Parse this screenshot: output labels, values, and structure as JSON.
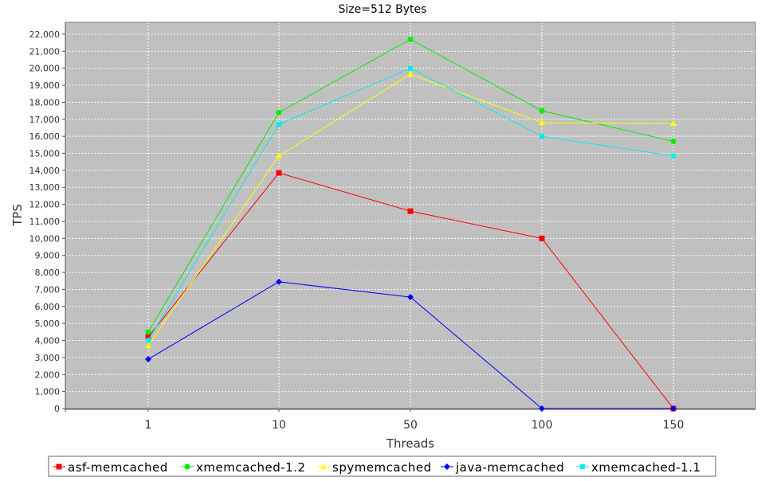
{
  "chart_data": {
    "type": "line",
    "title": "Size=512 Bytes",
    "xlabel": "Threads",
    "ylabel": "TPS",
    "categories": [
      "1",
      "10",
      "50",
      "100",
      "150"
    ],
    "ylim": [
      0,
      22700
    ],
    "yticks": [
      0,
      1000,
      2000,
      3000,
      4000,
      5000,
      6000,
      7000,
      8000,
      9000,
      10000,
      11000,
      12000,
      13000,
      14000,
      15000,
      16000,
      17000,
      18000,
      19000,
      20000,
      21000,
      22000
    ],
    "ytick_labels": [
      "0",
      "1,000",
      "2,000",
      "3,000",
      "4,000",
      "5,000",
      "6,000",
      "7,000",
      "8,000",
      "9,000",
      "10,000",
      "11,000",
      "12,000",
      "13,000",
      "14,000",
      "15,000",
      "16,000",
      "17,000",
      "18,000",
      "19,000",
      "20,000",
      "21,000",
      "22,000"
    ],
    "grid": true,
    "legend_position": "bottom",
    "plot_background": "#c0c0c0",
    "series": [
      {
        "name": "asf-memcached",
        "color": "#ff0000",
        "marker": "square",
        "values": [
          4200,
          13850,
          11600,
          10000,
          0
        ]
      },
      {
        "name": "xmemcached-1.2",
        "color": "#00ee00",
        "marker": "circle",
        "values": [
          4500,
          17400,
          21700,
          17500,
          15700
        ]
      },
      {
        "name": "spymemcached",
        "color": "#ffff00",
        "marker": "triangle-up",
        "values": [
          3700,
          14850,
          19650,
          16800,
          16750
        ]
      },
      {
        "name": "java-memcached",
        "color": "#0000ff",
        "marker": "diamond",
        "values": [
          2900,
          7450,
          6550,
          0,
          0
        ]
      },
      {
        "name": "xmemcached-1.1",
        "color": "#00eeee",
        "marker": "square-small",
        "values": [
          4000,
          16700,
          20000,
          16000,
          14850
        ]
      }
    ]
  }
}
